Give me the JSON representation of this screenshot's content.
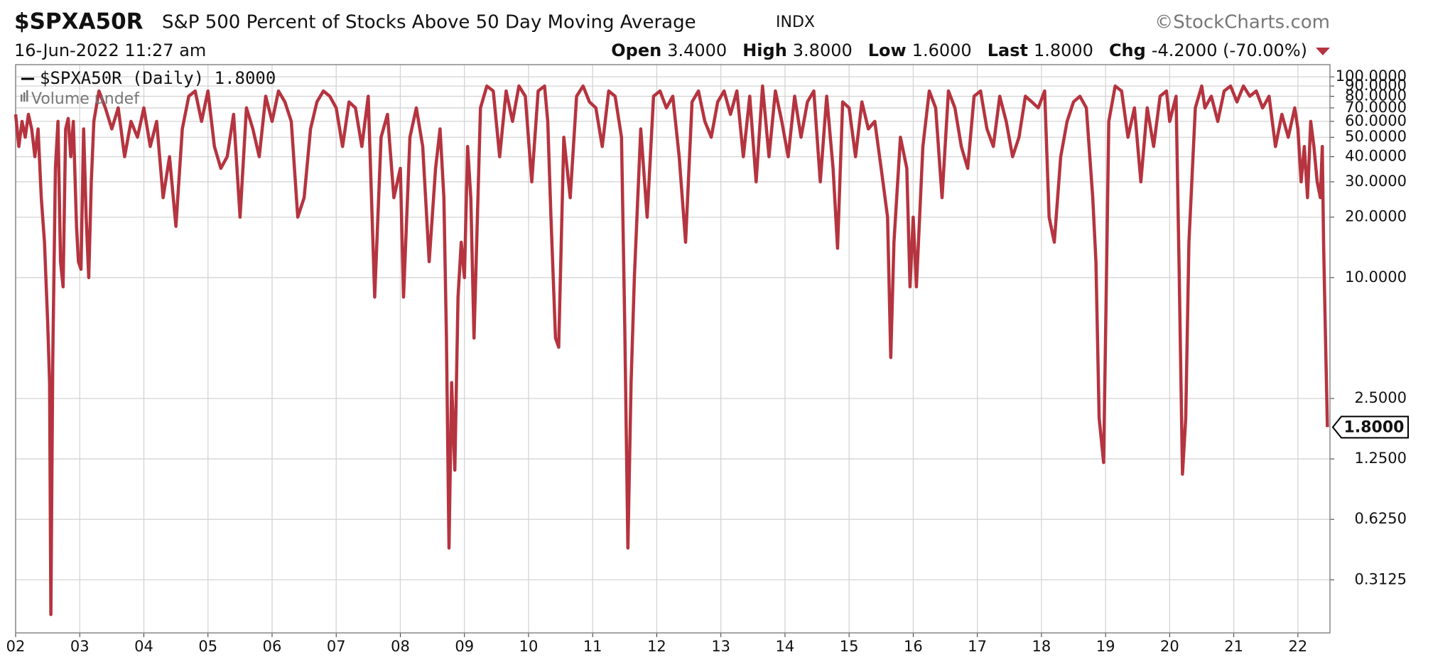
{
  "chart_data": {
    "type": "line",
    "symbol": "$SPXA50R",
    "title": "S&P 500 Percent of Stocks Above 50 Day Moving Average",
    "exchange": "INDX",
    "source": "©StockCharts.com",
    "date": "16-Jun-2022 11:27 am",
    "quote": [
      {
        "label": "Open",
        "value": "3.4000"
      },
      {
        "label": "High",
        "value": "3.8000"
      },
      {
        "label": "Low",
        "value": "1.6000"
      },
      {
        "label": "Last",
        "value": "1.8000"
      },
      {
        "label": "Chg",
        "value": "-4.2000 (-70.00%)"
      }
    ],
    "volume_label": "Volume undef",
    "log_scale": true,
    "grid": true,
    "xlim": [
      2002,
      2022.5
    ],
    "xticks": [
      {
        "value": 2002,
        "label": "02"
      },
      {
        "value": 2003,
        "label": "03"
      },
      {
        "value": 2004,
        "label": "04"
      },
      {
        "value": 2005,
        "label": "05"
      },
      {
        "value": 2006,
        "label": "06"
      },
      {
        "value": 2007,
        "label": "07"
      },
      {
        "value": 2008,
        "label": "08"
      },
      {
        "value": 2009,
        "label": "09"
      },
      {
        "value": 2010,
        "label": "10"
      },
      {
        "value": 2011,
        "label": "11"
      },
      {
        "value": 2012,
        "label": "12"
      },
      {
        "value": 2013,
        "label": "13"
      },
      {
        "value": 2014,
        "label": "14"
      },
      {
        "value": 2015,
        "label": "15"
      },
      {
        "value": 2016,
        "label": "16"
      },
      {
        "value": 2017,
        "label": "17"
      },
      {
        "value": 2018,
        "label": "18"
      },
      {
        "value": 2019,
        "label": "19"
      },
      {
        "value": 2020,
        "label": "20"
      },
      {
        "value": 2021,
        "label": "21"
      },
      {
        "value": 2022,
        "label": "22"
      }
    ],
    "ylim": [
      0.17,
      115
    ],
    "yticks": [
      {
        "value": 100,
        "label": "100.0000"
      },
      {
        "value": 90,
        "label": "90.0000"
      },
      {
        "value": 80,
        "label": "80.0000"
      },
      {
        "value": 70,
        "label": "70.0000"
      },
      {
        "value": 60,
        "label": "60.0000"
      },
      {
        "value": 50,
        "label": "50.0000"
      },
      {
        "value": 40,
        "label": "40.0000"
      },
      {
        "value": 30,
        "label": "30.0000"
      },
      {
        "value": 20,
        "label": "20.0000"
      },
      {
        "value": 10,
        "label": "10.0000"
      },
      {
        "value": 2.5,
        "label": "2.5000"
      },
      {
        "value": 1.25,
        "label": "1.2500"
      },
      {
        "value": 0.625,
        "label": "0.6250"
      },
      {
        "value": 0.3125,
        "label": "0.3125"
      }
    ],
    "x": [
      2002.0,
      2002.05,
      2002.1,
      2002.15,
      2002.2,
      2002.25,
      2002.3,
      2002.35,
      2002.4,
      2002.45,
      2002.5,
      2002.53,
      2002.55,
      2002.58,
      2002.62,
      2002.66,
      2002.7,
      2002.74,
      2002.78,
      2002.82,
      2002.86,
      2002.9,
      2002.95,
      2002.98,
      2003.02,
      2003.06,
      2003.1,
      2003.14,
      2003.18,
      2003.22,
      2003.3,
      2003.4,
      2003.5,
      2003.6,
      2003.7,
      2003.8,
      2003.9,
      2004.0,
      2004.1,
      2004.2,
      2004.3,
      2004.4,
      2004.5,
      2004.6,
      2004.7,
      2004.8,
      2004.9,
      2005.0,
      2005.1,
      2005.2,
      2005.3,
      2005.4,
      2005.5,
      2005.6,
      2005.7,
      2005.8,
      2005.9,
      2006.0,
      2006.1,
      2006.2,
      2006.3,
      2006.4,
      2006.5,
      2006.6,
      2006.7,
      2006.8,
      2006.9,
      2007.0,
      2007.1,
      2007.2,
      2007.3,
      2007.4,
      2007.5,
      2007.6,
      2007.7,
      2007.8,
      2007.9,
      2008.0,
      2008.05,
      2008.15,
      2008.25,
      2008.35,
      2008.45,
      2008.55,
      2008.62,
      2008.68,
      2008.72,
      2008.76,
      2008.8,
      2008.85,
      2008.9,
      2008.95,
      2009.0,
      2009.05,
      2009.1,
      2009.15,
      2009.25,
      2009.35,
      2009.45,
      2009.55,
      2009.65,
      2009.75,
      2009.85,
      2009.95,
      2010.05,
      2010.15,
      2010.25,
      2010.3,
      2010.35,
      2010.42,
      2010.47,
      2010.55,
      2010.65,
      2010.75,
      2010.85,
      2010.95,
      2011.05,
      2011.15,
      2011.25,
      2011.35,
      2011.45,
      2011.5,
      2011.55,
      2011.6,
      2011.65,
      2011.75,
      2011.85,
      2011.95,
      2012.05,
      2012.15,
      2012.25,
      2012.35,
      2012.45,
      2012.55,
      2012.65,
      2012.75,
      2012.85,
      2012.95,
      2013.05,
      2013.15,
      2013.25,
      2013.35,
      2013.45,
      2013.55,
      2013.65,
      2013.75,
      2013.85,
      2013.95,
      2014.05,
      2014.15,
      2014.25,
      2014.35,
      2014.45,
      2014.55,
      2014.65,
      2014.75,
      2014.82,
      2014.9,
      2015.0,
      2015.1,
      2015.2,
      2015.3,
      2015.4,
      2015.5,
      2015.6,
      2015.65,
      2015.7,
      2015.8,
      2015.9,
      2015.95,
      2016.0,
      2016.05,
      2016.15,
      2016.25,
      2016.35,
      2016.45,
      2016.55,
      2016.65,
      2016.75,
      2016.85,
      2016.95,
      2017.05,
      2017.15,
      2017.25,
      2017.35,
      2017.45,
      2017.55,
      2017.65,
      2017.75,
      2017.85,
      2017.95,
      2018.05,
      2018.12,
      2018.2,
      2018.3,
      2018.4,
      2018.5,
      2018.6,
      2018.7,
      2018.8,
      2018.85,
      2018.9,
      2018.97,
      2019.0,
      2019.05,
      2019.15,
      2019.25,
      2019.35,
      2019.45,
      2019.55,
      2019.65,
      2019.75,
      2019.85,
      2019.95,
      2020.0,
      2020.1,
      2020.15,
      2020.2,
      2020.25,
      2020.3,
      2020.4,
      2020.5,
      2020.55,
      2020.65,
      2020.75,
      2020.85,
      2020.95,
      2021.05,
      2021.15,
      2021.25,
      2021.35,
      2021.45,
      2021.55,
      2021.65,
      2021.75,
      2021.85,
      2021.95,
      2022.0,
      2022.05,
      2022.1,
      2022.15,
      2022.2,
      2022.25,
      2022.3,
      2022.35,
      2022.38,
      2022.4,
      2022.43,
      2022.46
    ],
    "series": [
      {
        "name": "$SPXA50R (Daily) 1.8000",
        "color": "#b5343f",
        "values": [
          65,
          45,
          60,
          50,
          65,
          55,
          40,
          55,
          25,
          15,
          6,
          3,
          0.21,
          4,
          35,
          60,
          12,
          9,
          55,
          62,
          40,
          60,
          18,
          12,
          11,
          55,
          20,
          10,
          30,
          60,
          85,
          70,
          55,
          70,
          40,
          60,
          50,
          70,
          45,
          60,
          25,
          40,
          18,
          55,
          80,
          85,
          60,
          85,
          45,
          35,
          40,
          65,
          20,
          70,
          55,
          40,
          80,
          60,
          85,
          75,
          60,
          20,
          25,
          55,
          75,
          85,
          80,
          70,
          45,
          75,
          70,
          45,
          80,
          8,
          50,
          65,
          25,
          35,
          8,
          50,
          70,
          45,
          12,
          35,
          55,
          25,
          5,
          0.45,
          3,
          1.1,
          8,
          15,
          10,
          45,
          25,
          5,
          70,
          90,
          85,
          40,
          85,
          60,
          90,
          80,
          30,
          85,
          90,
          60,
          20,
          5,
          4.5,
          50,
          25,
          80,
          90,
          75,
          70,
          45,
          85,
          80,
          50,
          6,
          0.45,
          3,
          10,
          55,
          20,
          80,
          85,
          70,
          80,
          40,
          15,
          75,
          85,
          60,
          50,
          75,
          85,
          65,
          85,
          40,
          80,
          30,
          90,
          40,
          85,
          60,
          40,
          80,
          50,
          75,
          85,
          30,
          80,
          35,
          14,
          75,
          70,
          40,
          75,
          55,
          60,
          35,
          20,
          4,
          15,
          50,
          35,
          9,
          20,
          9,
          45,
          85,
          70,
          25,
          85,
          70,
          45,
          35,
          80,
          85,
          55,
          45,
          80,
          60,
          40,
          50,
          80,
          75,
          70,
          85,
          20,
          15,
          40,
          60,
          75,
          80,
          70,
          25,
          12,
          2,
          1.2,
          5,
          60,
          90,
          85,
          50,
          70,
          30,
          70,
          45,
          80,
          85,
          60,
          80,
          10,
          1.05,
          2,
          15,
          70,
          90,
          70,
          80,
          60,
          85,
          90,
          75,
          90,
          80,
          85,
          70,
          80,
          45,
          65,
          50,
          70,
          55,
          30,
          45,
          25,
          60,
          45,
          30,
          25,
          45,
          15,
          5,
          1.8
        ]
      }
    ]
  }
}
